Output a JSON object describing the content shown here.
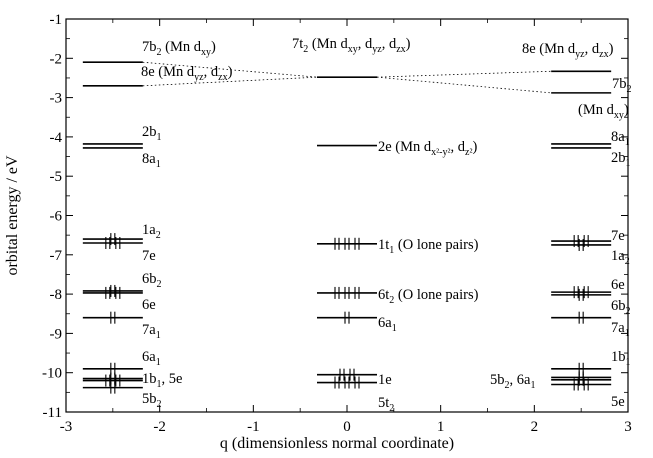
{
  "chart_data": {
    "type": "scatter",
    "xlabel": "q (dimensionless normal coordinate)",
    "ylabel": "orbital energy / eV",
    "xlim": [
      -3,
      3
    ],
    "ylim": [
      -11,
      -1
    ],
    "xticks": [
      -3,
      -2,
      -1,
      0,
      1,
      2,
      3
    ],
    "yticks": [
      -1,
      -2,
      -3,
      -4,
      -5,
      -6,
      -7,
      -8,
      -9,
      -10,
      -11
    ],
    "grid": false,
    "columns": [
      {
        "q": -2.5,
        "levels": [
          {
            "energy": -2.1,
            "electrons": 0,
            "label": "7b2 (Mn dxy)"
          },
          {
            "energy": -2.7,
            "electrons": 0,
            "label": "8e (Mn dyz, dzx)"
          },
          {
            "energy": -4.18,
            "electrons": 0,
            "label": "2b1"
          },
          {
            "energy": -4.28,
            "electrons": 0,
            "label": "8a1"
          },
          {
            "energy": -6.6,
            "electrons": 2,
            "label": "1a2"
          },
          {
            "energy": -6.7,
            "electrons": 4,
            "label": "7e"
          },
          {
            "energy": -7.92,
            "electrons": 2,
            "label": "6b2"
          },
          {
            "energy": -7.97,
            "electrons": 4,
            "label": "6e"
          },
          {
            "energy": -8.6,
            "electrons": 2,
            "label": "7a1"
          },
          {
            "energy": -9.9,
            "electrons": 2,
            "label": "6a1"
          },
          {
            "energy": -10.15,
            "electrons": 2,
            "label": "1b1"
          },
          {
            "energy": -10.2,
            "electrons": 4,
            "label": "5e"
          },
          {
            "energy": -10.38,
            "electrons": 2,
            "label": "5b2"
          }
        ]
      },
      {
        "q": 0,
        "levels": [
          {
            "energy": -2.48,
            "electrons": 0,
            "label": "7t2 (Mn dxy, dyz, dzx)"
          },
          {
            "energy": -4.22,
            "electrons": 0,
            "label": "2e (Mn dx2-y2, dz2)"
          },
          {
            "energy": -6.72,
            "electrons": 6,
            "label": "1t1 (O lone pairs)"
          },
          {
            "energy": -7.97,
            "electrons": 6,
            "label": "6t2 (O lone pairs)"
          },
          {
            "energy": -8.6,
            "electrons": 2,
            "label": "6a1"
          },
          {
            "energy": -10.05,
            "electrons": 4,
            "label": "1e"
          },
          {
            "energy": -10.25,
            "electrons": 6,
            "label": "5t2"
          }
        ]
      },
      {
        "q": 2.5,
        "levels": [
          {
            "energy": -2.33,
            "electrons": 0,
            "label": "8e (Mn dyz, dzx)"
          },
          {
            "energy": -2.88,
            "electrons": 0,
            "label": "7b2 (Mn dxy)"
          },
          {
            "energy": -4.18,
            "electrons": 0,
            "label": "8a1"
          },
          {
            "energy": -4.28,
            "electrons": 0,
            "label": "2b1"
          },
          {
            "energy": -6.65,
            "electrons": 4,
            "label": "7e"
          },
          {
            "energy": -6.75,
            "electrons": 2,
            "label": "1a2"
          },
          {
            "energy": -7.95,
            "electrons": 4,
            "label": "6e"
          },
          {
            "energy": -8.02,
            "electrons": 2,
            "label": "6b2"
          },
          {
            "energy": -8.6,
            "electrons": 2,
            "label": "7a1"
          },
          {
            "energy": -9.9,
            "electrons": 2,
            "label": "1b1"
          },
          {
            "energy": -10.12,
            "electrons": 2,
            "label": "6a1"
          },
          {
            "energy": -10.18,
            "electrons": 2,
            "label": "5b2"
          },
          {
            "energy": -10.3,
            "electrons": 4,
            "label": "5e"
          }
        ]
      }
    ],
    "correlations": [
      {
        "from": {
          "q": -2.5,
          "energy": -2.1
        },
        "to": {
          "q": 0,
          "energy": -2.48
        }
      },
      {
        "from": {
          "q": -2.5,
          "energy": -2.7
        },
        "to": {
          "q": 0,
          "energy": -2.48
        }
      },
      {
        "from": {
          "q": 0,
          "energy": -2.48
        },
        "to": {
          "q": 2.5,
          "energy": -2.33
        }
      },
      {
        "from": {
          "q": 0,
          "energy": -2.48
        },
        "to": {
          "q": 2.5,
          "energy": -2.88
        }
      }
    ]
  },
  "labels": {
    "left_7b2": {
      "main": "7b",
      "sub1": "2",
      "rest": " (Mn d",
      "sub2": "xy",
      "end": ")"
    },
    "left_8e": {
      "main": "8e (Mn d",
      "sub1": "yz",
      "mid": ", d",
      "sub2": "zx",
      "end": ")"
    },
    "left_2b1": {
      "main": "2b",
      "sub1": "1"
    },
    "left_8a1": {
      "main": "8a",
      "sub1": "1"
    },
    "left_1a2": {
      "main": "1a",
      "sub1": "2"
    },
    "left_7e": {
      "main": "7e"
    },
    "left_6b2": {
      "main": "6b",
      "sub1": "2"
    },
    "left_6e": {
      "main": "6e"
    },
    "left_7a1": {
      "main": "7a",
      "sub1": "1"
    },
    "left_6a1": {
      "main": "6a",
      "sub1": "1"
    },
    "left_1b1_5e": {
      "main": "1b",
      "sub1": "1",
      "rest": ", 5e"
    },
    "left_5b2": {
      "main": "5b",
      "sub1": "2"
    },
    "mid_7t2": {
      "main": "7t",
      "sub1": "2",
      "rest": " (Mn d",
      "sub2": "xy",
      "mid": ", d",
      "sub3": "yz",
      "mid2": ", d",
      "sub4": "zx",
      "end": ")"
    },
    "mid_2e": {
      "main": "2e (Mn d",
      "sub1": "x²-y²",
      "mid": ", d",
      "sub2": "z²",
      "end": ")"
    },
    "mid_1t1": {
      "main": "1t",
      "sub1": "1",
      "rest": " (O lone pairs)"
    },
    "mid_6t2": {
      "main": "6t",
      "sub1": "2",
      "rest": " (O lone pairs)"
    },
    "mid_6a1": {
      "main": "6a",
      "sub1": "1"
    },
    "mid_1e": {
      "main": "1e"
    },
    "mid_5t2": {
      "main": "5t",
      "sub1": "2"
    },
    "right_8e": {
      "main": "8e (Mn d",
      "sub1": "yz",
      "mid": ", d",
      "sub2": "zx",
      "end": ")"
    },
    "right_7b2": {
      "main": "7b",
      "sub1": "2"
    },
    "right_7b2_paren": {
      "main": "(Mn d",
      "sub1": "xy",
      "end": ")"
    },
    "right_8a1": {
      "main": "8a",
      "sub1": "1"
    },
    "right_2b1": {
      "main": "2b",
      "sub1": "1"
    },
    "right_7e": {
      "main": "7e"
    },
    "right_1a2": {
      "main": "1a",
      "sub1": "2"
    },
    "right_6e": {
      "main": "6e"
    },
    "right_6b2": {
      "main": "6b",
      "sub1": "2"
    },
    "right_7a1": {
      "main": "7a",
      "sub1": "1"
    },
    "right_1b1": {
      "main": "1b",
      "sub1": "1"
    },
    "right_5b2_6a1": {
      "main": "5b",
      "sub1": "2",
      "mid": ", 6a",
      "sub2": "1"
    },
    "right_5e": {
      "main": "5e"
    }
  }
}
